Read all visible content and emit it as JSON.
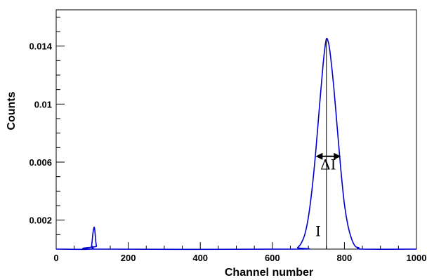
{
  "chart_data": {
    "type": "line",
    "title": "",
    "xlabel": "Channel number",
    "ylabel": "Counts",
    "xlim": [
      0,
      1000
    ],
    "ylim": [
      0,
      0.0165
    ],
    "grid": false,
    "x_ticks": [
      0,
      200,
      400,
      600,
      800,
      1000
    ],
    "y_ticks": [
      0.002,
      0.006,
      0.01,
      0.014
    ],
    "x_tick_labels": [
      "0",
      "200",
      "400",
      "600",
      "800",
      "1000"
    ],
    "y_tick_labels": [
      "0.002",
      "0.006",
      "0.01",
      "0.014"
    ],
    "series": [
      {
        "color": "#0000cc",
        "x": [
          0,
          95,
          98,
          100,
          102,
          104,
          106,
          108,
          110,
          112,
          115,
          660,
          670,
          680,
          690,
          700,
          710,
          720,
          730,
          740,
          745,
          750,
          755,
          760,
          770,
          780,
          790,
          800,
          810,
          820,
          830,
          840,
          850,
          1000
        ],
        "y": [
          0,
          0,
          0.0002,
          0.0006,
          0.0011,
          0.0014,
          0.0015,
          0.0011,
          0.0005,
          0.0002,
          0,
          0,
          0.0001,
          0.0004,
          0.001,
          0.0022,
          0.0041,
          0.0066,
          0.0096,
          0.0125,
          0.0137,
          0.0145,
          0.0143,
          0.0136,
          0.0113,
          0.0084,
          0.0055,
          0.0031,
          0.0016,
          0.0007,
          0.0002,
          0.0001,
          0,
          0
        ]
      }
    ],
    "annotations": [
      {
        "text": "ΔI",
        "kind": "width-arrow",
        "x_from": 720,
        "x_to": 790,
        "y": 0.0064,
        "label_x": 755,
        "label_y": 0.0055
      },
      {
        "text": "I",
        "kind": "peak-line",
        "x": 750,
        "y_from": 0,
        "y_to": 0.0145,
        "label_x": 727,
        "label_y": 0.0009
      }
    ]
  }
}
